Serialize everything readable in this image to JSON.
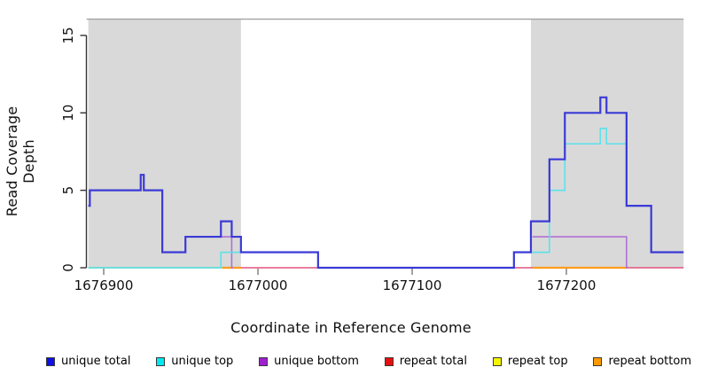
{
  "chart_data": {
    "type": "line",
    "subtype": "step",
    "xlabel": "Coordinate in Reference Genome",
    "ylabel": "Read Coverage Depth",
    "xlim": [
      1676890,
      1677276
    ],
    "ylim": [
      0,
      16.1
    ],
    "x_ticks": [
      1676900,
      1677000,
      1677100,
      1677200
    ],
    "y_ticks": [
      0,
      5,
      10,
      15
    ],
    "grid": false,
    "legend_position": "bottom",
    "top_border_y": 16.05,
    "shaded_regions": [
      {
        "label": "repeat-region-left",
        "x1": 1676890,
        "x2": 1676989,
        "color": "#d9d9d9"
      },
      {
        "label": "repeat-region-right",
        "x1": 1677177,
        "x2": 1677276,
        "color": "#d9d9d9"
      }
    ],
    "series": [
      {
        "name": "unique total",
        "legend_color": "#0f0fe8",
        "draw_color": "#3a3ad6",
        "line_width": 2.2,
        "runs": [
          [
            [
              1676890,
              4
            ],
            [
              1676891,
              5
            ],
            [
              1676924,
              6
            ],
            [
              1676926,
              5
            ],
            [
              1676938,
              1
            ],
            [
              1676953,
              2
            ],
            [
              1676976,
              3
            ],
            [
              1676983,
              2
            ],
            [
              1676989,
              1
            ],
            [
              1677039,
              0
            ],
            [
              1677166,
              1
            ],
            [
              1677177,
              3
            ],
            [
              1677189,
              7
            ],
            [
              1677199,
              10
            ],
            [
              1677222,
              11
            ],
            [
              1677226,
              10
            ],
            [
              1677239,
              4
            ],
            [
              1677255,
              1
            ],
            [
              1677276,
              1
            ]
          ]
        ]
      },
      {
        "name": "unique top",
        "legend_color": "#00e8f0",
        "draw_color": "#5ce1ea",
        "line_width": 1.6,
        "runs": [
          [
            [
              1676890,
              0
            ],
            [
              1676976,
              1
            ],
            [
              1677039,
              0
            ],
            [
              1677166,
              1
            ],
            [
              1677189,
              5
            ],
            [
              1677199,
              8
            ],
            [
              1677222,
              9
            ],
            [
              1677226,
              8
            ],
            [
              1677239,
              4
            ],
            [
              1677255,
              1
            ],
            [
              1677276,
              1
            ]
          ]
        ]
      },
      {
        "name": "unique bottom",
        "legend_color": "#a01fd0",
        "draw_color": "#b170d6",
        "line_width": 1.6,
        "runs": [
          [
            [
              1676953,
              2
            ],
            [
              1676983,
              0
            ],
            [
              1676984,
              0
            ]
          ],
          [
            [
              1677178,
              2
            ],
            [
              1677239,
              0
            ],
            [
              1677240,
              0
            ]
          ]
        ]
      },
      {
        "name": "repeat total",
        "legend_color": "#e80f0f",
        "draw_color": "#e0547e",
        "line_width": 1.6,
        "runs": [
          [
            [
              1676977,
              0
            ],
            [
              1677276,
              0
            ]
          ]
        ]
      },
      {
        "name": "repeat top",
        "legend_color": "#f5f500",
        "draw_color": "#8cca8c",
        "line_width": 1.8,
        "runs": [
          [
            [
              1676890,
              0
            ],
            [
              1676977,
              0
            ]
          ]
        ]
      },
      {
        "name": "repeat bottom",
        "legend_color": "#ff9900",
        "draw_color": "#ff9c1c",
        "line_width": 2.2,
        "runs": [
          [
            [
              1676977,
              0
            ],
            [
              1676989,
              0
            ]
          ],
          [
            [
              1677178,
              0
            ],
            [
              1677240,
              0
            ]
          ]
        ]
      }
    ],
    "draw_order": [
      3,
      4,
      5,
      2,
      1,
      0
    ]
  }
}
